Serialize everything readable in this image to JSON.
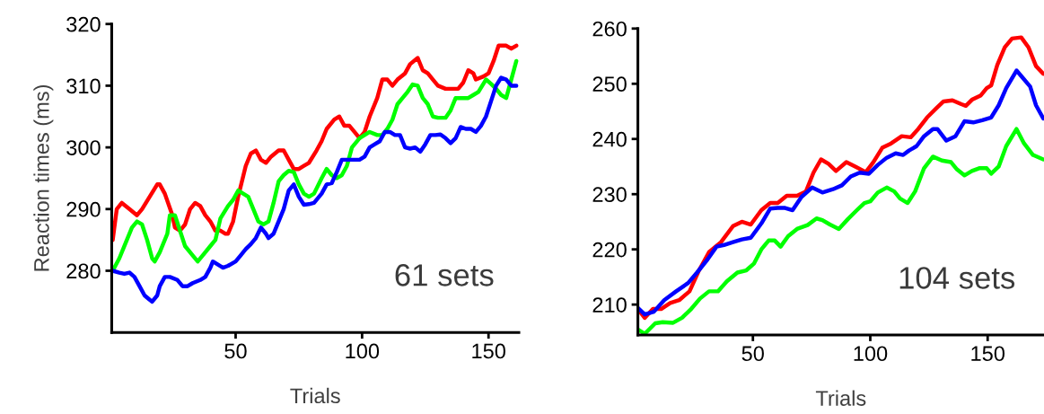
{
  "chart_data": [
    {
      "type": "line",
      "ylabel": "Reaction times (ms)",
      "xlabel": "Trials",
      "annotations": [
        "61 sets"
      ],
      "xlim": [
        1,
        162
      ],
      "ylim": [
        270,
        320
      ],
      "xticks": [
        50,
        100,
        150
      ],
      "yticks": [
        280,
        290,
        300,
        310,
        320
      ],
      "grid": false,
      "legend": false,
      "marker": "none",
      "line_style": "solid",
      "series": [
        {
          "color": "#ff0000",
          "x": [
            1.4,
            3,
            5,
            8,
            11,
            13,
            16,
            19,
            20,
            22,
            25,
            26,
            28,
            30,
            32,
            34,
            36,
            38,
            40,
            42,
            44,
            46,
            47,
            49,
            51,
            54,
            56,
            58,
            60,
            62,
            64,
            67,
            69,
            71,
            73,
            75,
            77,
            79,
            82,
            84,
            86,
            89,
            91,
            93,
            95,
            97,
            99,
            101,
            103,
            106,
            108,
            110,
            112,
            114,
            117,
            119,
            122,
            124,
            126,
            128,
            130,
            133,
            136,
            138,
            140,
            142,
            144,
            145,
            148,
            150,
            152,
            154,
            157,
            159,
            161
          ],
          "values": [
            285,
            290,
            291,
            290,
            289,
            290,
            292,
            294,
            294,
            292.5,
            289,
            287,
            286.5,
            287.5,
            290,
            291,
            290.5,
            289,
            288,
            286.5,
            286.5,
            286,
            286,
            288,
            292,
            297,
            299,
            299.5,
            298,
            297.5,
            298.5,
            299.5,
            299.5,
            298,
            296.5,
            296.5,
            297,
            297.5,
            299.5,
            301,
            303,
            304.5,
            305,
            303.5,
            303.5,
            302.5,
            301.5,
            302.5,
            305,
            308,
            311,
            311,
            310,
            311,
            312,
            313.5,
            314.5,
            312.5,
            312,
            311,
            310,
            309.5,
            309.5,
            309.5,
            310.5,
            312.5,
            312,
            311,
            311.5,
            312,
            314,
            316.5,
            316.5,
            316,
            316.5
          ]
        },
        {
          "color": "#00ff00",
          "x": [
            1.4,
            4,
            7,
            9,
            11,
            13,
            15,
            17,
            18,
            20,
            23,
            24,
            26,
            28,
            30,
            33,
            35,
            37,
            40,
            42,
            44,
            47,
            49,
            51,
            53,
            55,
            57,
            59,
            61,
            63,
            65,
            67,
            69,
            71,
            73,
            75,
            77,
            79,
            81,
            84,
            86,
            88,
            90,
            92,
            94,
            96,
            99,
            101,
            103,
            106,
            108,
            110,
            112,
            114,
            116,
            118,
            120,
            122,
            124,
            126,
            128,
            130,
            133,
            135,
            137,
            140,
            142,
            144,
            146,
            149,
            151,
            153,
            155,
            157,
            159,
            161
          ],
          "values": [
            280,
            282,
            285,
            287,
            288,
            287.5,
            285,
            282,
            281.5,
            283,
            286,
            289,
            289,
            286.5,
            284,
            282.5,
            281.5,
            282.5,
            284,
            285,
            288.5,
            290.5,
            291.5,
            293,
            292.5,
            292,
            290,
            288,
            287.5,
            288,
            291,
            294.5,
            295.5,
            296.2,
            296,
            294,
            292.5,
            292,
            292.5,
            295,
            296.5,
            295.5,
            295,
            295.5,
            297,
            300,
            301.5,
            302,
            302.5,
            302,
            302,
            303,
            304.5,
            307,
            308,
            309,
            310.2,
            310,
            308,
            307,
            305,
            304.8,
            304.8,
            306,
            308,
            308,
            308,
            308.5,
            309,
            311,
            310.3,
            309.5,
            308.5,
            308,
            311,
            314
          ]
        },
        {
          "color": "#0000ff",
          "x": [
            1.4,
            4,
            6,
            8,
            10,
            12,
            14,
            16,
            17,
            19,
            20,
            22,
            24,
            27,
            29,
            31,
            33,
            36,
            38,
            40,
            41,
            43,
            45,
            47,
            50,
            52,
            54,
            56,
            58,
            60,
            62,
            63,
            65,
            67,
            69,
            71,
            73,
            75,
            77,
            79,
            81,
            84,
            86,
            88,
            90,
            92,
            95,
            97,
            99,
            101,
            103,
            105,
            107,
            109,
            111,
            113,
            115,
            117,
            119,
            121,
            123,
            125,
            127,
            129,
            131,
            133,
            135,
            137,
            139,
            141,
            143,
            145,
            147,
            149,
            151,
            153,
            155,
            157,
            159,
            161
          ],
          "values": [
            280,
            279.7,
            279.5,
            279.7,
            279,
            277.5,
            276,
            275.3,
            275,
            276,
            277.5,
            279,
            279,
            278.5,
            277.5,
            277.5,
            278,
            278.5,
            279,
            280.5,
            281.5,
            281,
            280.5,
            280.8,
            281.5,
            282.5,
            283.5,
            284.3,
            285.3,
            287,
            286,
            285.3,
            286,
            288,
            290,
            293,
            294,
            292,
            290.7,
            290.8,
            291,
            292.5,
            294,
            294.2,
            296,
            298,
            298,
            298,
            298,
            298.5,
            300,
            300.5,
            301,
            302.5,
            302.5,
            302,
            302,
            300,
            299.8,
            300,
            299.3,
            300.5,
            302,
            302,
            302.1,
            301.5,
            300.7,
            301.5,
            303.3,
            303,
            303,
            302.5,
            303.5,
            305,
            307.5,
            310,
            311.3,
            311,
            310,
            310
          ]
        }
      ]
    },
    {
      "type": "line",
      "xlabel": "Trials",
      "annotations": [
        "104 sets"
      ],
      "xlim": [
        1,
        174
      ],
      "ylim": [
        204.5,
        260
      ],
      "xticks": [
        50,
        100,
        150
      ],
      "yticks": [
        210,
        220,
        230,
        240,
        250,
        260
      ],
      "grid": false,
      "legend": false,
      "marker": "none",
      "line_style": "solid",
      "series": [
        {
          "color": "#ff0000",
          "x": [
            1,
            3.9,
            7.4,
            10.9,
            14.8,
            18.6,
            23,
            26.8,
            31.3,
            36.4,
            41.5,
            45.3,
            49.1,
            53.6,
            57.4,
            60.6,
            64.4,
            68.8,
            72.6,
            75.8,
            79,
            82.2,
            85.4,
            89.8,
            93.6,
            98.1,
            101.3,
            105.1,
            108.9,
            113.4,
            117.2,
            120.4,
            124.2,
            128,
            131.2,
            135,
            138.8,
            140.7,
            143.3,
            147.1,
            149.6,
            151.5,
            154.1,
            157.3,
            160.4,
            164.3,
            167.4,
            170.6,
            173.7
          ],
          "values": [
            209.2,
            207.6,
            209.2,
            209.2,
            210.3,
            210.8,
            212.4,
            216,
            219.5,
            221.3,
            224.2,
            225,
            224.5,
            227.1,
            228.4,
            228.4,
            229.7,
            229.7,
            230.5,
            233.9,
            236.3,
            235.5,
            234.2,
            235.8,
            235,
            234,
            235.8,
            238.4,
            239.2,
            240.5,
            240.3,
            241.8,
            243.9,
            245.5,
            246.8,
            247,
            246.3,
            246,
            247.1,
            247.9,
            249.2,
            249.7,
            253.4,
            256.6,
            258.2,
            258.4,
            256.6,
            253.2,
            251.8
          ]
        },
        {
          "color": "#0000ff",
          "x": [
            1,
            3.9,
            7.8,
            12.2,
            17.3,
            22.4,
            26.2,
            30.7,
            34.5,
            37.7,
            41.5,
            45.3,
            49.1,
            53.6,
            57.4,
            60.6,
            63.7,
            66.9,
            70.7,
            75.2,
            79.6,
            84.1,
            87.9,
            91.7,
            95.5,
            99.4,
            103.2,
            107,
            110.8,
            114,
            116.5,
            119.7,
            122.9,
            126.7,
            128.6,
            132.4,
            136.3,
            140.1,
            143.9,
            147.7,
            151.5,
            154.7,
            157.9,
            162.3,
            164.9,
            168.1,
            170.6,
            173.7
          ],
          "values": [
            209.4,
            208.2,
            208.7,
            210.8,
            212.4,
            213.9,
            215.8,
            218.2,
            220.5,
            220.8,
            221.3,
            221.8,
            222.1,
            224.7,
            227.4,
            227.5,
            227.5,
            227.1,
            229.5,
            231.2,
            230.3,
            230.9,
            231.6,
            233.2,
            233.9,
            233.7,
            235.3,
            236.6,
            237.4,
            237.1,
            237.9,
            238.7,
            240.5,
            241.8,
            241.8,
            239.7,
            240.5,
            243.2,
            243,
            243.4,
            243.9,
            246.1,
            249.2,
            252.4,
            251.1,
            249.5,
            246.1,
            243.7
          ]
        },
        {
          "color": "#00ff00",
          "x": [
            1,
            3.9,
            8.4,
            11.6,
            16,
            19.8,
            23.7,
            27.5,
            31.3,
            35.1,
            38.9,
            43.4,
            47.2,
            50.4,
            53.6,
            56.7,
            59.3,
            61.8,
            65,
            68.8,
            73.3,
            77.1,
            79.6,
            82.8,
            86.6,
            90.5,
            94.3,
            97.5,
            100,
            103.2,
            107,
            110.2,
            112.7,
            115.9,
            119.1,
            122.9,
            126.7,
            130.5,
            134.4,
            136.9,
            140.1,
            143.3,
            146.4,
            149.6,
            151.5,
            154.7,
            157.9,
            162.3,
            165.5,
            169.3,
            173.7
          ],
          "values": [
            205.5,
            204.7,
            206.6,
            206.8,
            206.7,
            207.6,
            209.2,
            211.1,
            212.4,
            212.4,
            214.2,
            215.8,
            216.2,
            217.4,
            220,
            221.6,
            221.6,
            220.5,
            222.4,
            223.7,
            224.4,
            225.6,
            225.3,
            224.5,
            223.7,
            225.5,
            227.1,
            228.4,
            228.7,
            230.3,
            231.2,
            230.5,
            229.2,
            228.4,
            230.5,
            234.7,
            236.8,
            236.1,
            235.8,
            234.5,
            233.4,
            234.2,
            234.7,
            234.7,
            233.7,
            235,
            238.7,
            241.8,
            239.2,
            237.1,
            236.3
          ]
        }
      ]
    }
  ]
}
